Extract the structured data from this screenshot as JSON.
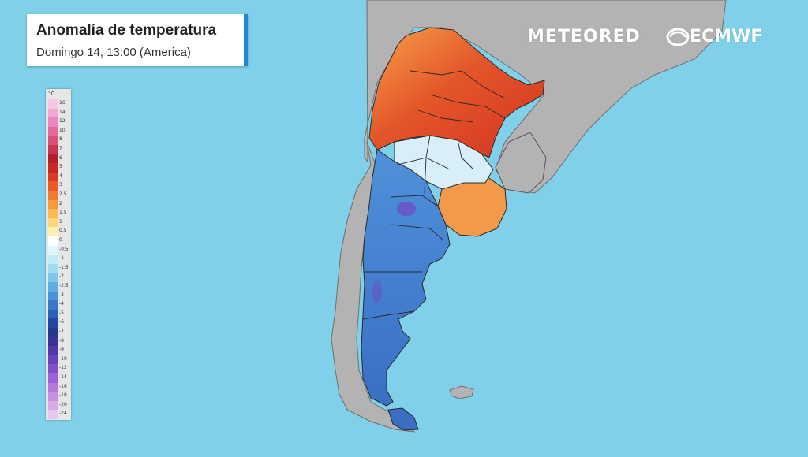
{
  "header": {
    "title": "Anomalía de temperatura",
    "subtitle": "Domingo 14, 13:00 (America)"
  },
  "brand": {
    "meteored": "METEORED",
    "ecmwf": "ECMWF",
    "accent_color": "#1e88d6"
  },
  "legend": {
    "unit": "°C",
    "steps": [
      {
        "label": "16",
        "color": "#f7c7e3"
      },
      {
        "label": "14",
        "color": "#f2a6d2"
      },
      {
        "label": "12",
        "color": "#ea86bd"
      },
      {
        "label": "10",
        "color": "#e46a9c"
      },
      {
        "label": "8",
        "color": "#d9507a"
      },
      {
        "label": "7",
        "color": "#c7364e"
      },
      {
        "label": "6",
        "color": "#b51f2a"
      },
      {
        "label": "5",
        "color": "#c7281f"
      },
      {
        "label": "4",
        "color": "#dd3b1e"
      },
      {
        "label": "3",
        "color": "#ec5a25"
      },
      {
        "label": "2.5",
        "color": "#f27b2e"
      },
      {
        "label": "2",
        "color": "#f79a3b"
      },
      {
        "label": "1.5",
        "color": "#fbb954"
      },
      {
        "label": "1",
        "color": "#fdd67c"
      },
      {
        "label": "0.5",
        "color": "#fff0b0"
      },
      {
        "label": "0",
        "color": "#ffffff"
      },
      {
        "label": "-0.5",
        "color": "#dff4fb"
      },
      {
        "label": "-1",
        "color": "#bfeaf7"
      },
      {
        "label": "-1.5",
        "color": "#9edcf1"
      },
      {
        "label": "-2",
        "color": "#7fc8ec"
      },
      {
        "label": "-2.5",
        "color": "#5faee2"
      },
      {
        "label": "-3",
        "color": "#4a93d6"
      },
      {
        "label": "-4",
        "color": "#3a78c8"
      },
      {
        "label": "-5",
        "color": "#2c5fb6"
      },
      {
        "label": "-6",
        "color": "#2148a2"
      },
      {
        "label": "-7",
        "color": "#243a8c"
      },
      {
        "label": "-8",
        "color": "#3b3394"
      },
      {
        "label": "-9",
        "color": "#5237a8"
      },
      {
        "label": "-10",
        "color": "#6a40bb"
      },
      {
        "label": "-12",
        "color": "#8450c8"
      },
      {
        "label": "-14",
        "color": "#9d62d3"
      },
      {
        "label": "-16",
        "color": "#b577dc"
      },
      {
        "label": "-18",
        "color": "#c98fe3"
      },
      {
        "label": "-20",
        "color": "#daa9ea"
      },
      {
        "label": "-24",
        "color": "#e9c6f1"
      }
    ]
  },
  "map": {
    "ocean_color": "#7fd0e8",
    "land_color": "#b3b3b3",
    "border_color": "#2a2a2a"
  }
}
